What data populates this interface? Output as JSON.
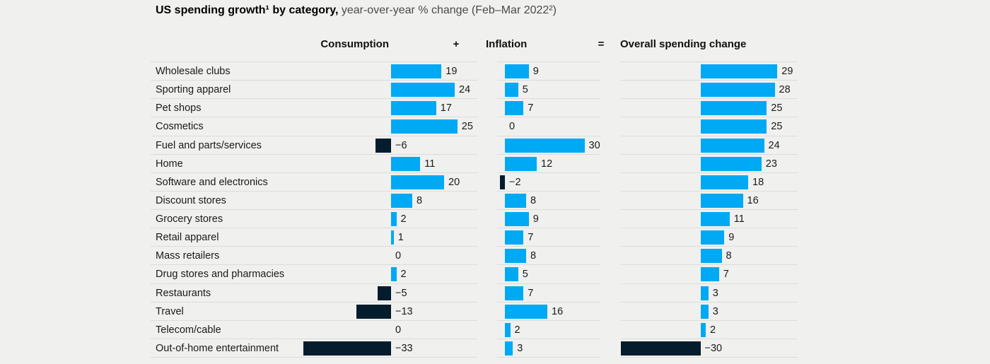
{
  "page": {
    "background": "#f0f0ee"
  },
  "title": {
    "bold": "US spending growth¹ by category,",
    "regular": " year-over-year % change (Feb–Mar 2022²)"
  },
  "headers": {
    "consumption": "Consumption",
    "plus": "+",
    "inflation": "Inflation",
    "equals": "=",
    "overall": "Overall spending change"
  },
  "colors": {
    "positive_bar": "#00a9f4",
    "negative_bar": "#051c2c",
    "row_separator": "#dcdcda",
    "background": "#f0f0ee"
  },
  "chart_data": {
    "type": "bar",
    "orientation": "horizontal",
    "title": "US spending growth by category, year-over-year % change (Feb–Mar 2022)",
    "value_unit": "% change year-over-year",
    "categories": [
      "Wholesale clubs",
      "Sporting apparel",
      "Pet shops",
      "Cosmetics",
      "Fuel and parts/services",
      "Home",
      "Software and electronics",
      "Discount stores",
      "Grocery stores",
      "Retail apparel",
      "Mass retailers",
      "Drug stores and pharmacies",
      "Restaurants",
      "Travel",
      "Telecom/cable",
      "Out-of-home entertainment"
    ],
    "series": [
      {
        "name": "Consumption",
        "values": [
          19,
          24,
          17,
          25,
          -6,
          11,
          20,
          8,
          2,
          1,
          0,
          2,
          -5,
          -13,
          0,
          -33
        ]
      },
      {
        "name": "Inflation",
        "values": [
          9,
          5,
          7,
          0,
          30,
          12,
          -2,
          8,
          9,
          7,
          8,
          5,
          7,
          16,
          2,
          3
        ]
      },
      {
        "name": "Overall spending change",
        "values": [
          29,
          28,
          25,
          25,
          24,
          23,
          18,
          16,
          11,
          9,
          8,
          7,
          3,
          3,
          2,
          -30
        ]
      }
    ],
    "positive_color": "#00a9f4",
    "negative_color": "#051c2c",
    "xlim": [
      -33,
      30
    ],
    "grid": "row-separators-only",
    "legend": "none",
    "data_labels": "shown-at-bar-end"
  }
}
